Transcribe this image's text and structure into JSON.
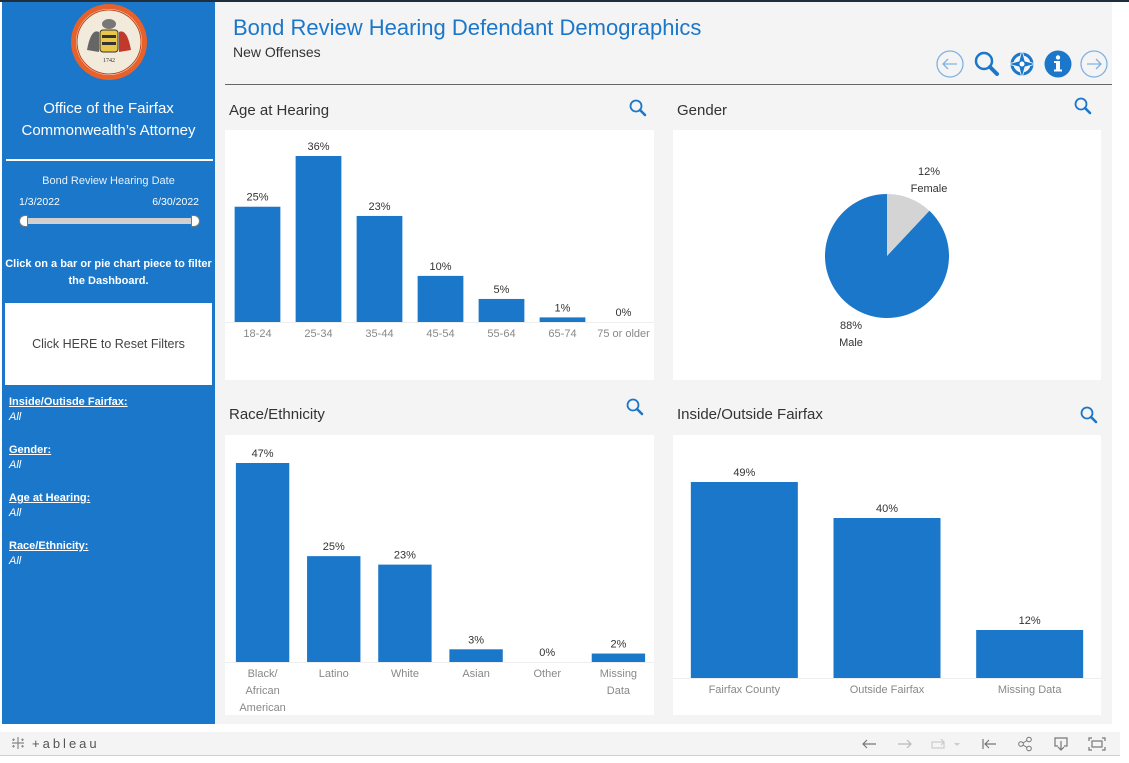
{
  "sidebar": {
    "seal_alt": "County of Fairfax Virginia 1742 seal",
    "office_title_line1": "Office of the Fairfax",
    "office_title_line2": "Commonwealth’s Attorney",
    "date_filter": {
      "label": "Bond Review Hearing Date",
      "start": "1/3/2022",
      "end": "6/30/2022"
    },
    "instructions": "Click on a bar or pie chart piece to filter the Dashboard.",
    "reset_button": "Click HERE to Reset Filters",
    "filters": [
      {
        "label": "Inside/Outisde Fairfax:",
        "value": "All"
      },
      {
        "label": "Gender:",
        "value": "All"
      },
      {
        "label": "Age at Hearing:",
        "value": "All"
      },
      {
        "label": "Race/Ethnicity:",
        "value": "All"
      }
    ]
  },
  "header": {
    "title": "Bond Review Hearing Defendant Demographics",
    "subtitle": "New Offenses",
    "nav_icons": [
      "back-arrow-icon",
      "search-icon",
      "compass-icon",
      "info-icon",
      "forward-arrow-icon"
    ]
  },
  "colors": {
    "accent": "#1b77c9",
    "pie_secondary": "#d4d4d4",
    "background": "#f4f4f4"
  },
  "chart_data": [
    {
      "id": "age",
      "type": "bar",
      "title": "Age at Hearing",
      "categories": [
        "18-24",
        "25-34",
        "35-44",
        "45-54",
        "55-64",
        "65-74",
        "75 or older"
      ],
      "values": [
        25,
        36,
        23,
        10,
        5,
        1,
        0
      ],
      "labels": [
        "25%",
        "36%",
        "23%",
        "10%",
        "5%",
        "1%",
        "0%"
      ],
      "xlabel": "",
      "ylabel": "",
      "ylim": [
        0,
        36
      ],
      "grid": false
    },
    {
      "id": "gender",
      "type": "pie",
      "title": "Gender",
      "categories": [
        "Female",
        "Male"
      ],
      "values": [
        12,
        88
      ],
      "labels": [
        "12%",
        "88%"
      ]
    },
    {
      "id": "race",
      "type": "bar",
      "title": "Race/Ethnicity",
      "categories": [
        [
          "Black/",
          "African",
          "American"
        ],
        [
          "Latino"
        ],
        [
          "White"
        ],
        [
          "Asian"
        ],
        [
          "Other"
        ],
        [
          "Missing",
          "Data"
        ]
      ],
      "values": [
        47,
        25,
        23,
        3,
        0,
        2
      ],
      "labels": [
        "47%",
        "25%",
        "23%",
        "3%",
        "0%",
        "2%"
      ],
      "xlabel": "",
      "ylabel": "",
      "ylim": [
        0,
        47
      ],
      "grid": false
    },
    {
      "id": "location",
      "type": "bar",
      "title": "Inside/Outside Fairfax",
      "categories": [
        [
          "Fairfax County"
        ],
        [
          "Outside Fairfax"
        ],
        [
          "Missing Data"
        ]
      ],
      "values": [
        49,
        40,
        12
      ],
      "labels": [
        "49%",
        "40%",
        "12%"
      ],
      "xlabel": "",
      "ylabel": "",
      "ylim": [
        0,
        49
      ],
      "grid": false
    }
  ],
  "footer": {
    "brand": "+ableau",
    "tools": [
      "undo-icon",
      "redo-icon",
      "revert-icon",
      "reset-to-start-icon",
      "share-icon",
      "download-icon",
      "fullscreen-icon"
    ]
  }
}
